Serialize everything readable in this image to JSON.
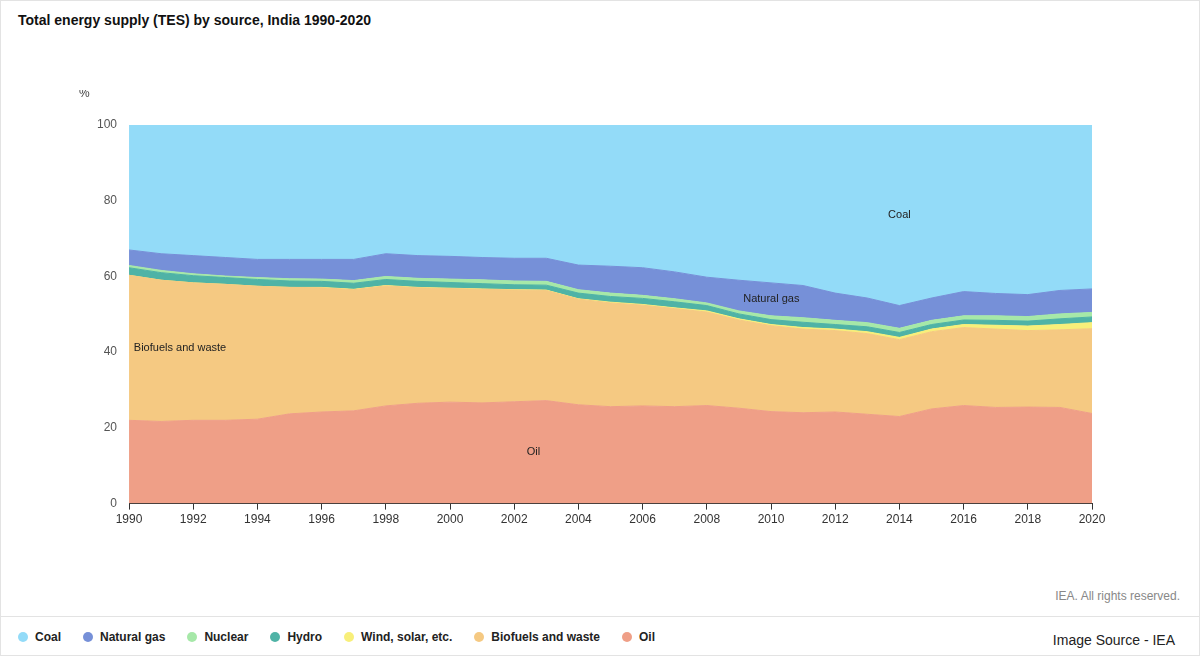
{
  "chart_data": {
    "type": "area",
    "title": "Total energy supply (TES) by source, India 1990-2020",
    "y_label": "%",
    "stacked": true,
    "grid": true,
    "legend": "bottom",
    "x": [
      1990,
      1991,
      1992,
      1993,
      1994,
      1995,
      1996,
      1997,
      1998,
      1999,
      2000,
      2001,
      2002,
      2003,
      2004,
      2005,
      2006,
      2007,
      2008,
      2009,
      2010,
      2011,
      2012,
      2013,
      2014,
      2015,
      2016,
      2017,
      2018,
      2019,
      2020
    ],
    "xlim": [
      1990,
      2020
    ],
    "xticks": [
      1990,
      1992,
      1994,
      1996,
      1998,
      2000,
      2002,
      2004,
      2006,
      2008,
      2010,
      2012,
      2014,
      2016,
      2018,
      2020
    ],
    "ylim": [
      0,
      100
    ],
    "yticks": [
      0,
      20,
      40,
      60,
      80,
      100
    ],
    "series": [
      {
        "name": "Coal",
        "color": "#93dbf8",
        "values": [
          33,
          34,
          34.5,
          35,
          35.5,
          35.5,
          35.5,
          35.5,
          34,
          34.5,
          34.7,
          35,
          35.2,
          35.2,
          37,
          37.3,
          37.7,
          38.8,
          40.2,
          41,
          41.7,
          42.4,
          44.4,
          45.7,
          47.7,
          45.7,
          44,
          44.5,
          44.8,
          43.7,
          43.3
        ]
      },
      {
        "name": "Natural gas",
        "color": "#7690d8",
        "values": [
          4.1,
          4.4,
          4.8,
          4.9,
          4.8,
          5.1,
          5.2,
          5.6,
          6.0,
          6.0,
          6.0,
          5.9,
          6.0,
          6.1,
          6.5,
          7.1,
          7.3,
          7.1,
          6.8,
          8.1,
          8.7,
          8.5,
          7.2,
          6.5,
          6.0,
          5.9,
          6.4,
          5.9,
          5.8,
          6.2,
          6.2
        ]
      },
      {
        "name": "Nuclear",
        "color": "#a6e8a8",
        "values": [
          0.6,
          0.6,
          0.5,
          0.4,
          0.5,
          0.6,
          0.6,
          0.7,
          0.8,
          0.8,
          0.9,
          1.0,
          1.0,
          1.0,
          0.9,
          0.9,
          0.8,
          0.8,
          0.7,
          0.8,
          1.0,
          1.2,
          1.1,
          1.1,
          1.1,
          1.1,
          1.1,
          1.2,
          1.2,
          1.3,
          1.2
        ]
      },
      {
        "name": "Hydro",
        "color": "#4fb3a6",
        "values": [
          2.0,
          2.0,
          1.9,
          1.8,
          1.8,
          1.7,
          1.6,
          1.6,
          1.6,
          1.6,
          1.5,
          1.4,
          1.3,
          1.3,
          1.5,
          1.5,
          1.6,
          1.6,
          1.4,
          1.3,
          1.3,
          1.4,
          1.2,
          1.3,
          1.3,
          1.2,
          1.2,
          1.3,
          1.3,
          1.5,
          1.5
        ]
      },
      {
        "name": "Wind, solar, etc.",
        "color": "#f8ef7a",
        "values": [
          0,
          0,
          0,
          0,
          0,
          0,
          0.1,
          0.1,
          0.1,
          0.1,
          0.1,
          0.1,
          0.1,
          0.1,
          0.1,
          0.2,
          0.2,
          0.2,
          0.3,
          0.3,
          0.3,
          0.4,
          0.4,
          0.5,
          0.6,
          0.7,
          0.8,
          1.0,
          1.2,
          1.4,
          1.6
        ]
      },
      {
        "name": "Biofuels and waste",
        "color": "#f5c982",
        "values": [
          38.3,
          37.3,
          36.3,
          35.9,
          35.1,
          33.4,
          32.8,
          32.0,
          31.7,
          30.5,
          30.0,
          30.0,
          29.5,
          29.1,
          27.9,
          27.4,
          26.6,
          25.9,
          24.7,
          23.3,
          22.7,
          22.1,
          21.5,
          21.3,
          20.3,
          20.4,
          20.6,
          20.7,
          20.2,
          20.5,
          22.4
        ]
      },
      {
        "name": "Oil",
        "color": "#ef9f87",
        "values": [
          22,
          21.7,
          22,
          22,
          22.3,
          23.7,
          24.2,
          24.5,
          25.8,
          26.5,
          26.8,
          26.6,
          26.9,
          27.2,
          26.1,
          25.6,
          25.8,
          25.6,
          25.9,
          25.2,
          24.3,
          24,
          24.2,
          23.6,
          23,
          25,
          25.9,
          25.4,
          25.5,
          25.4,
          23.8
        ]
      }
    ],
    "annotations": [
      "Coal",
      "Natural gas",
      "Biofuels and waste",
      "Oil"
    ],
    "note": "IEA. All rights reserved.",
    "source": "Image Source - IEA"
  }
}
